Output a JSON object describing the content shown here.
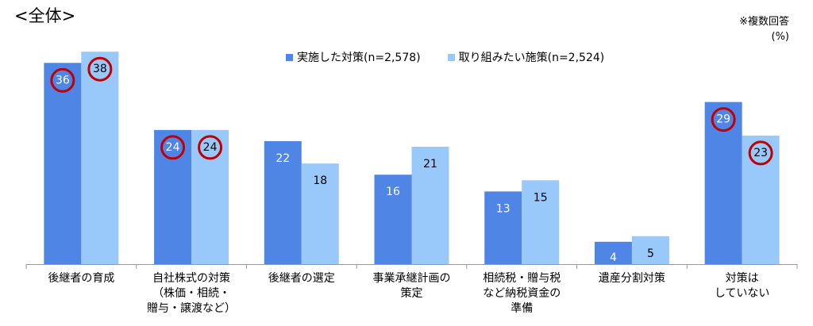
{
  "header": {
    "section_title": "<全体>",
    "note_line1": "※複数回答",
    "note_line2": "(%)"
  },
  "colors": {
    "series1": "#4f86e6",
    "series2": "#99c8fa",
    "highlight_circle": "#c00000",
    "axis": "#999999"
  },
  "chart_data": {
    "type": "bar",
    "categories": [
      "後継者の育成",
      "自社株式の対策\n（株価・相続・\n贈与・譲渡など）",
      "後継者の選定",
      "事業承継計画の\n策定",
      "相続税・贈与税\nなど納税資金の\n準備",
      "遺産分割対策",
      "対策は\nしていない"
    ],
    "series": [
      {
        "name": "実施した対策(n=2,578)",
        "values": [
          36,
          24,
          22,
          16,
          13,
          4,
          29
        ],
        "circled": [
          true,
          true,
          false,
          false,
          false,
          false,
          true
        ]
      },
      {
        "name": "取り組みたい施策(n=2,524)",
        "values": [
          38,
          24,
          18,
          21,
          15,
          5,
          23
        ],
        "circled": [
          true,
          true,
          false,
          false,
          false,
          false,
          true
        ]
      }
    ],
    "ylim": [
      0,
      42
    ],
    "legend_position": "top",
    "grid": false
  }
}
